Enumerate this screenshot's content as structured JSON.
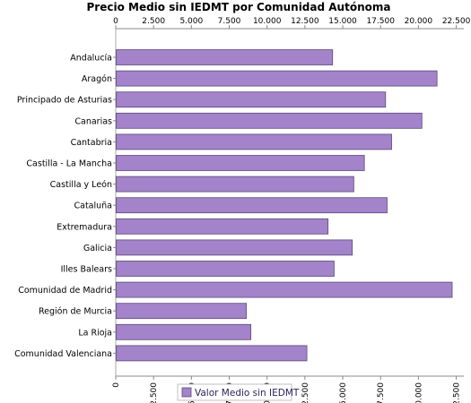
{
  "chart_data": {
    "type": "bar",
    "orientation": "horizontal",
    "title": "Precio Medio sin IEDMT por Comunidad Autónoma",
    "xlabel": "",
    "ylabel": "",
    "xlim": [
      0,
      23000
    ],
    "x_ticks": [
      0,
      2500,
      5000,
      7500,
      10000,
      12500,
      15000,
      17500,
      20000,
      22500
    ],
    "x_tick_labels": [
      "0",
      "2.500",
      "5.000",
      "7.500",
      "10.000",
      "12.500",
      "15.000",
      "17.500",
      "20.000",
      "22.500"
    ],
    "axis_position": "top",
    "grid": false,
    "legend_placement": "bottom-center",
    "categories": [
      "Andalucía",
      "Aragón",
      "Principado de Asturias",
      "Canarias",
      "Cantabria",
      "Castilla - La Mancha",
      "Castilla y León",
      "Cataluña",
      "Extremadura",
      "Galicia",
      "Illes Balears",
      "Comunidad de Madrid",
      "Región de Murcia",
      "La Rioja",
      "Comunidad Valenciana"
    ],
    "series": [
      {
        "name": "Valor Medio sin IEDMT",
        "color": "#a383c9",
        "values": [
          14300,
          21200,
          17800,
          20200,
          18200,
          16400,
          15700,
          17900,
          14000,
          15600,
          14400,
          22200,
          8600,
          8900,
          12600
        ]
      }
    ]
  }
}
